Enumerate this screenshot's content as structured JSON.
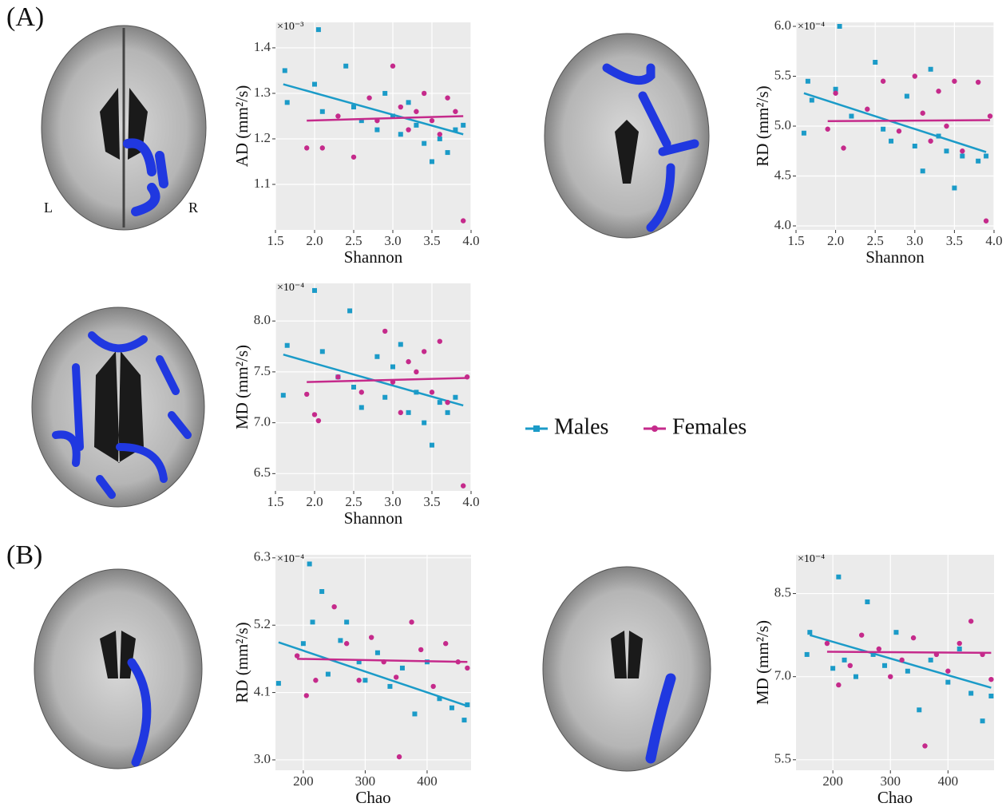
{
  "panel_labels": [
    "(A)",
    "(B)"
  ],
  "orientation_labels": [
    "L",
    "R"
  ],
  "chart_data": [
    {
      "type": "scatter",
      "xlabel": "Shannon",
      "ylabel": "AD  (mm²/s)",
      "y_multiplier": "×10⁻³",
      "xlim": [
        1.5,
        4.0
      ],
      "ylim": [
        1.0,
        1.456
      ],
      "grid": true,
      "xticks": [
        1.5,
        {
          "value": 2,
          "label": "2.0"
        },
        2.5,
        {
          "value": 3,
          "label": "3.0"
        },
        3.5,
        {
          "value": 4,
          "label": "4.0"
        }
      ],
      "yticks": [
        1.1,
        1.2,
        1.3,
        1.4
      ],
      "series": [
        {
          "name": "Males",
          "color": "#1b9bc8",
          "marker": "square",
          "x": [
            1.62,
            1.65,
            2.05,
            2.0,
            2.1,
            2.4,
            2.5,
            2.6,
            2.8,
            2.9,
            3.0,
            3.1,
            3.2,
            3.3,
            3.4,
            3.5,
            3.6,
            3.7,
            3.8,
            3.9
          ],
          "values": [
            1.35,
            1.28,
            1.44,
            1.32,
            1.26,
            1.36,
            1.27,
            1.24,
            1.22,
            1.3,
            1.25,
            1.21,
            1.28,
            1.23,
            1.19,
            1.15,
            1.2,
            1.17,
            1.22,
            1.23
          ],
          "fit_x": [
            1.6,
            3.9
          ],
          "fit_y": [
            1.32,
            1.21
          ]
        },
        {
          "name": "Females",
          "color": "#c52a8b",
          "marker": "circle",
          "x": [
            1.9,
            2.1,
            2.3,
            2.5,
            2.7,
            2.8,
            3.0,
            3.1,
            3.2,
            3.3,
            3.4,
            3.5,
            3.6,
            3.7,
            3.8,
            3.9
          ],
          "values": [
            1.18,
            1.18,
            1.25,
            1.16,
            1.29,
            1.24,
            1.36,
            1.27,
            1.22,
            1.26,
            1.3,
            1.24,
            1.21,
            1.29,
            1.26,
            1.02
          ],
          "fit_x": [
            1.9,
            3.9
          ],
          "fit_y": [
            1.24,
            1.25
          ]
        }
      ]
    },
    {
      "type": "scatter",
      "xlabel": "Shannon",
      "ylabel": "RD  (mm²/s)",
      "y_multiplier": "×10⁻⁴",
      "xlim": [
        1.5,
        4.0
      ],
      "ylim": [
        3.96,
        6.04
      ],
      "grid": true,
      "xticks": [
        1.5,
        {
          "value": 2,
          "label": "2.0"
        },
        2.5,
        {
          "value": 3,
          "label": "3.0"
        },
        3.5,
        {
          "value": 4,
          "label": "4.0"
        }
      ],
      "yticks": [
        {
          "value": 4,
          "label": "4.0"
        },
        4.5,
        {
          "value": 5,
          "label": "5.0"
        },
        5.5,
        {
          "value": 6,
          "label": "6.0"
        }
      ],
      "series": [
        {
          "name": "Males",
          "color": "#1b9bc8",
          "marker": "square",
          "x": [
            1.6,
            1.65,
            1.7,
            2.05,
            2.0,
            2.2,
            2.5,
            2.6,
            2.7,
            2.9,
            3.0,
            3.1,
            3.2,
            3.3,
            3.4,
            3.5,
            3.6,
            3.8,
            3.9
          ],
          "values": [
            4.93,
            5.45,
            5.26,
            6.0,
            5.37,
            5.1,
            5.64,
            4.97,
            4.85,
            5.3,
            4.8,
            4.55,
            5.57,
            4.9,
            4.75,
            4.38,
            4.7,
            4.65,
            4.7
          ],
          "fit_x": [
            1.6,
            3.9
          ],
          "fit_y": [
            5.33,
            4.74
          ]
        },
        {
          "name": "Females",
          "color": "#c52a8b",
          "marker": "circle",
          "x": [
            1.9,
            2.0,
            2.1,
            2.4,
            2.6,
            2.8,
            3.0,
            3.1,
            3.2,
            3.3,
            3.4,
            3.5,
            3.6,
            3.8,
            3.9,
            3.95
          ],
          "values": [
            4.97,
            5.33,
            4.78,
            5.17,
            5.45,
            4.95,
            5.5,
            5.13,
            4.85,
            5.35,
            5.0,
            5.45,
            4.75,
            5.44,
            4.05,
            5.1
          ],
          "fit_x": [
            1.9,
            3.95
          ],
          "fit_y": [
            5.05,
            5.06
          ]
        }
      ]
    },
    {
      "type": "scatter",
      "xlabel": "Shannon",
      "ylabel": "MD  (mm²/s)",
      "y_multiplier": "×10⁻⁴",
      "xlim": [
        1.5,
        4.0
      ],
      "ylim": [
        6.33,
        8.37
      ],
      "grid": true,
      "xticks": [
        1.5,
        {
          "value": 2,
          "label": "2.0"
        },
        2.5,
        {
          "value": 3,
          "label": "3.0"
        },
        3.5,
        {
          "value": 4,
          "label": "4.0"
        }
      ],
      "yticks": [
        6.5,
        {
          "value": 7,
          "label": "7.0"
        },
        7.5,
        {
          "value": 8,
          "label": "8.0"
        }
      ],
      "series": [
        {
          "name": "Males",
          "color": "#1b9bc8",
          "marker": "square",
          "x": [
            1.6,
            1.65,
            2.0,
            2.1,
            2.3,
            2.45,
            2.5,
            2.6,
            2.8,
            2.9,
            3.0,
            3.1,
            3.2,
            3.3,
            3.4,
            3.5,
            3.6,
            3.7,
            3.8
          ],
          "values": [
            7.27,
            7.76,
            8.3,
            7.7,
            7.45,
            8.1,
            7.35,
            7.15,
            7.65,
            7.25,
            7.55,
            7.77,
            7.1,
            7.3,
            7.0,
            6.78,
            7.2,
            7.1,
            7.25
          ],
          "fit_x": [
            1.6,
            3.9
          ],
          "fit_y": [
            7.67,
            7.17
          ]
        },
        {
          "name": "Females",
          "color": "#c52a8b",
          "marker": "circle",
          "x": [
            1.9,
            2.0,
            2.05,
            2.3,
            2.6,
            2.9,
            3.0,
            3.1,
            3.2,
            3.3,
            3.4,
            3.5,
            3.6,
            3.7,
            3.9,
            3.95
          ],
          "values": [
            7.28,
            7.08,
            7.02,
            7.45,
            7.3,
            7.9,
            7.4,
            7.1,
            7.6,
            7.5,
            7.7,
            7.3,
            7.8,
            7.2,
            6.38,
            7.45
          ],
          "fit_x": [
            1.9,
            3.95
          ],
          "fit_y": [
            7.4,
            7.44
          ]
        }
      ]
    },
    {
      "type": "scatter",
      "xlabel": "Chao",
      "ylabel": "RD  (mm²/s)",
      "y_multiplier": "×10⁻⁴",
      "xlim": [
        155,
        471
      ],
      "ylim": [
        2.83,
        6.35
      ],
      "grid": true,
      "xticks": [
        200,
        300,
        400
      ],
      "yticks": [
        {
          "value": 3,
          "label": "3.0"
        },
        4.1,
        5.2,
        6.3
      ],
      "series": [
        {
          "name": "Males",
          "color": "#1b9bc8",
          "marker": "square",
          "x": [
            160,
            200,
            210,
            215,
            230,
            240,
            260,
            270,
            290,
            300,
            320,
            340,
            360,
            380,
            400,
            420,
            440,
            460,
            465
          ],
          "values": [
            4.25,
            4.9,
            6.2,
            5.25,
            5.75,
            4.4,
            4.95,
            5.25,
            4.6,
            4.3,
            4.75,
            4.2,
            4.5,
            3.75,
            4.6,
            4.0,
            3.85,
            3.65,
            3.9
          ],
          "fit_x": [
            160,
            465
          ],
          "fit_y": [
            4.92,
            3.88
          ]
        },
        {
          "name": "Females",
          "color": "#c52a8b",
          "marker": "circle",
          "x": [
            190,
            205,
            220,
            250,
            270,
            290,
            310,
            330,
            350,
            355,
            375,
            390,
            410,
            430,
            450,
            465
          ],
          "values": [
            4.7,
            4.05,
            4.3,
            5.5,
            4.9,
            4.3,
            5.0,
            4.6,
            4.35,
            3.05,
            5.25,
            4.8,
            4.2,
            4.9,
            4.6,
            4.5
          ],
          "fit_x": [
            190,
            465
          ],
          "fit_y": [
            4.65,
            4.6
          ]
        }
      ]
    },
    {
      "type": "scatter",
      "xlabel": "Chao",
      "ylabel": "MD  (mm²/s)",
      "y_multiplier": "×10⁻⁴",
      "xlim": [
        136,
        480
      ],
      "ylim": [
        5.31,
        9.2
      ],
      "grid": true,
      "xticks": [
        200,
        300,
        400
      ],
      "yticks": [
        5.5,
        {
          "value": 7,
          "label": "7.0"
        },
        8.5
      ],
      "series": [
        {
          "name": "Males",
          "color": "#1b9bc8",
          "marker": "square",
          "x": [
            155,
            160,
            200,
            210,
            220,
            240,
            260,
            270,
            290,
            310,
            330,
            350,
            370,
            400,
            420,
            440,
            460,
            475
          ],
          "values": [
            7.4,
            7.8,
            7.15,
            8.8,
            7.3,
            7.0,
            8.35,
            7.4,
            7.2,
            7.8,
            7.1,
            6.4,
            7.3,
            6.9,
            7.5,
            6.7,
            6.2,
            6.65
          ],
          "fit_x": [
            160,
            475
          ],
          "fit_y": [
            7.75,
            6.8
          ]
        },
        {
          "name": "Females",
          "color": "#c52a8b",
          "marker": "circle",
          "x": [
            190,
            210,
            230,
            250,
            280,
            300,
            320,
            340,
            360,
            380,
            400,
            420,
            440,
            460,
            475
          ],
          "values": [
            7.6,
            6.85,
            7.2,
            7.75,
            7.5,
            7.0,
            7.3,
            7.7,
            5.75,
            7.4,
            7.1,
            7.6,
            8.0,
            7.4,
            6.95
          ],
          "fit_x": [
            190,
            475
          ],
          "fit_y": [
            7.45,
            7.43
          ]
        }
      ]
    }
  ]
}
